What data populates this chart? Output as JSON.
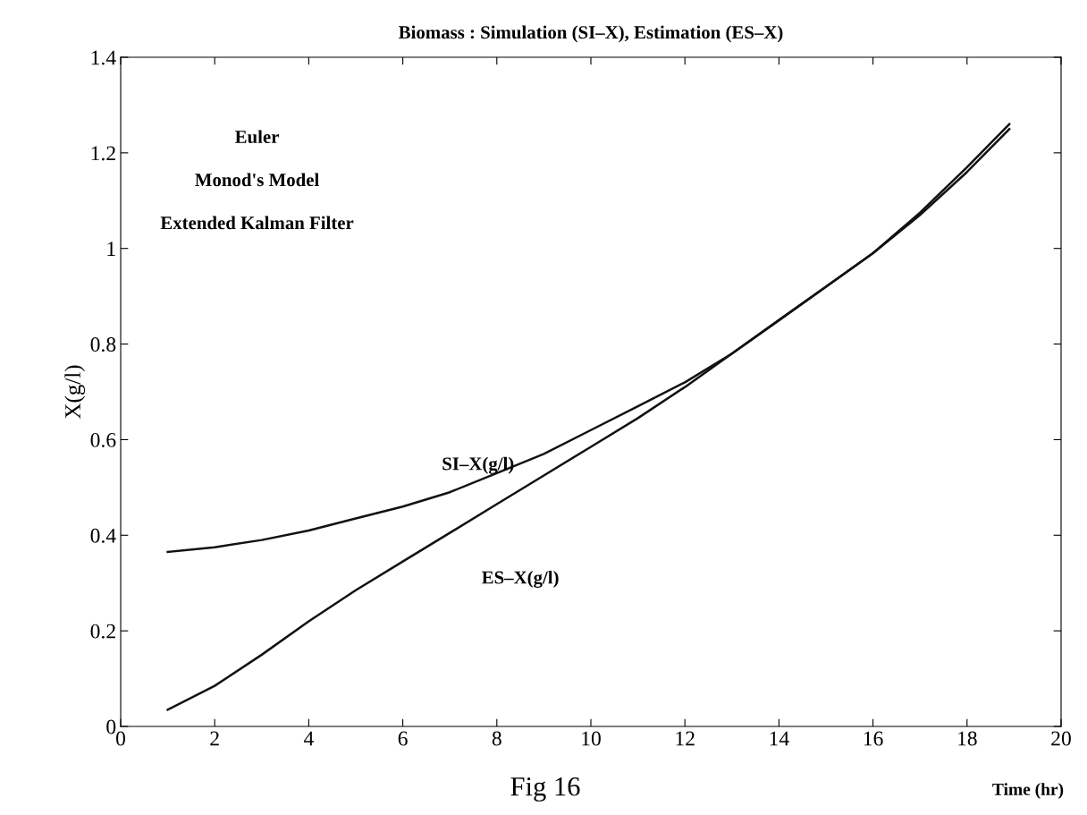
{
  "chart_data": {
    "type": "line",
    "title": "Biomass : Simulation (SI–X), Estimation (ES–X)",
    "xlabel": "Time (hr)",
    "ylabel": "X(g/l)",
    "xlim": [
      0,
      20
    ],
    "ylim": [
      0,
      1.4
    ],
    "xticks": [
      0,
      2,
      4,
      6,
      8,
      10,
      12,
      14,
      16,
      18,
      20
    ],
    "yticks": [
      0,
      0.2,
      0.4,
      0.6,
      0.8,
      1,
      1.2,
      1.4
    ],
    "grid": false,
    "legend": false,
    "series": [
      {
        "name": "SI–X(g/l)",
        "color": "#111111",
        "x": [
          1,
          2,
          3,
          4,
          5,
          6,
          7,
          8,
          9,
          10,
          11,
          12,
          13,
          14,
          15,
          16,
          17,
          18,
          18.9
        ],
        "values": [
          0.365,
          0.375,
          0.39,
          0.41,
          0.435,
          0.46,
          0.49,
          0.53,
          0.57,
          0.62,
          0.67,
          0.72,
          0.78,
          0.85,
          0.92,
          0.99,
          1.07,
          1.16,
          1.25
        ]
      },
      {
        "name": "ES–X(g/l)",
        "color": "#111111",
        "x": [
          1,
          2,
          3,
          4,
          5,
          6,
          7,
          8,
          9,
          10,
          11,
          12,
          13,
          14,
          15,
          16,
          17,
          18,
          18.9
        ],
        "values": [
          0.035,
          0.085,
          0.15,
          0.22,
          0.285,
          0.345,
          0.405,
          0.465,
          0.525,
          0.585,
          0.645,
          0.71,
          0.78,
          0.85,
          0.92,
          0.99,
          1.075,
          1.17,
          1.26
        ]
      }
    ],
    "annotations": [
      {
        "text": "Euler"
      },
      {
        "text": "Monod's Model"
      },
      {
        "text": "Extended Kalman Filter"
      },
      {
        "text": "Fig 16"
      }
    ]
  }
}
